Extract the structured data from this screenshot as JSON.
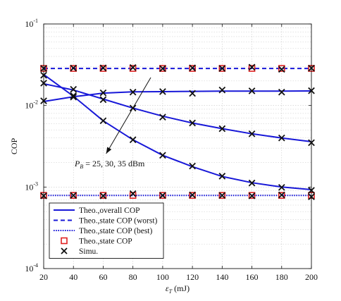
{
  "chart_data": {
    "type": "line",
    "title": "",
    "xlabel": "ε_T (mJ)",
    "ylabel": "COP",
    "xlim": [
      20,
      200
    ],
    "ylim": [
      0.0001,
      0.1
    ],
    "yscale": "log",
    "grid": true,
    "legend_position": "bottom-left",
    "x_ticks": [
      20,
      40,
      60,
      80,
      100,
      120,
      140,
      160,
      180,
      200
    ],
    "y_ticks": [
      {
        "value": 0.0001,
        "base": "10",
        "exp": "-4"
      },
      {
        "value": 0.001,
        "base": "10",
        "exp": "-3"
      },
      {
        "value": 0.01,
        "base": "10",
        "exp": "-2"
      },
      {
        "value": 0.1,
        "base": "10",
        "exp": "-1"
      }
    ],
    "x": [
      20,
      40,
      60,
      80,
      100,
      120,
      140,
      160,
      180,
      200
    ],
    "series": [
      {
        "key": "overall_25",
        "role": "overall",
        "values": [
          0.0112,
          0.0128,
          0.0142,
          0.0147,
          0.0148,
          0.0149,
          0.015,
          0.015,
          0.015,
          0.0151
        ]
      },
      {
        "key": "overall_30",
        "role": "overall",
        "values": [
          0.0185,
          0.0155,
          0.012,
          0.0093,
          0.0074,
          0.0061,
          0.0052,
          0.0045,
          0.004,
          0.0036
        ]
      },
      {
        "key": "overall_35",
        "role": "overall",
        "values": [
          0.024,
          0.013,
          0.0065,
          0.0038,
          0.00245,
          0.00178,
          0.00135,
          0.00113,
          0.001,
          0.00093
        ]
      },
      {
        "key": "worst",
        "role": "worst",
        "values": [
          0.0285,
          0.0285,
          0.0285,
          0.0285,
          0.0285,
          0.0285,
          0.0285,
          0.0285,
          0.0285,
          0.0285
        ]
      },
      {
        "key": "best",
        "role": "best",
        "values": [
          0.00079,
          0.00079,
          0.00079,
          0.00079,
          0.00079,
          0.00079,
          0.00079,
          0.00079,
          0.00079,
          0.00079
        ]
      }
    ],
    "markers_state_cop": [
      {
        "y": 0.0285,
        "x": [
          20,
          40,
          60,
          80,
          100,
          120,
          140,
          160,
          180,
          200
        ]
      },
      {
        "y": 0.00079,
        "x": [
          20,
          40,
          60,
          80,
          100,
          120,
          140,
          160,
          180,
          200
        ]
      }
    ],
    "markers_simu": [
      {
        "x": [
          20,
          40,
          60,
          80,
          100,
          120,
          140,
          160,
          180,
          200
        ],
        "values": [
          0.0114,
          0.0127,
          0.0143,
          0.0146,
          0.0148,
          0.0141,
          0.0155,
          0.0151,
          0.0146,
          0.0152
        ]
      },
      {
        "x": [
          20,
          40,
          60,
          80,
          100,
          120,
          140,
          160,
          180,
          200
        ],
        "values": [
          0.0188,
          0.0158,
          0.0118,
          0.0093,
          0.0072,
          0.0061,
          0.0052,
          0.0045,
          0.004,
          0.0035
        ]
      },
      {
        "x": [
          20,
          40,
          60,
          80,
          100,
          120,
          140,
          160,
          180,
          200
        ],
        "values": [
          0.0235,
          0.0132,
          0.0065,
          0.0038,
          0.00245,
          0.00181,
          0.00136,
          0.00112,
          0.00099,
          0.00091
        ]
      },
      {
        "x": [
          20,
          40,
          60,
          80,
          100,
          120,
          140,
          160,
          180,
          200
        ],
        "values": [
          0.0285,
          0.0288,
          0.0289,
          0.0292,
          0.0284,
          0.0289,
          0.0285,
          0.0295,
          0.0278,
          0.0287
        ]
      },
      {
        "x": [
          20,
          40,
          60,
          80,
          100,
          120,
          140,
          160,
          180,
          200
        ],
        "values": [
          0.00078,
          0.00079,
          0.00078,
          0.00083,
          0.00079,
          0.0008,
          0.00079,
          0.00078,
          0.0008,
          0.00076
        ]
      }
    ],
    "legend": [
      {
        "label": "Theo.,overall COP",
        "kind": "solid"
      },
      {
        "label": "Theo.,state COP (worst)",
        "kind": "dashed"
      },
      {
        "label": "Theo.,state COP (best)",
        "kind": "dotted"
      },
      {
        "label": "Theo.,state COP",
        "kind": "square"
      },
      {
        "label": "Simu.",
        "kind": "cross"
      }
    ],
    "annotation": {
      "text": "P_B = 25, 30, 35 dBm",
      "main": "P",
      "sub": "B",
      "rest": " = 25, 30, 35 dBm"
    },
    "colors": {
      "line": "#1818d8",
      "square": "#e02020",
      "cross": "#111111",
      "grid": "#c8c8c8"
    }
  }
}
